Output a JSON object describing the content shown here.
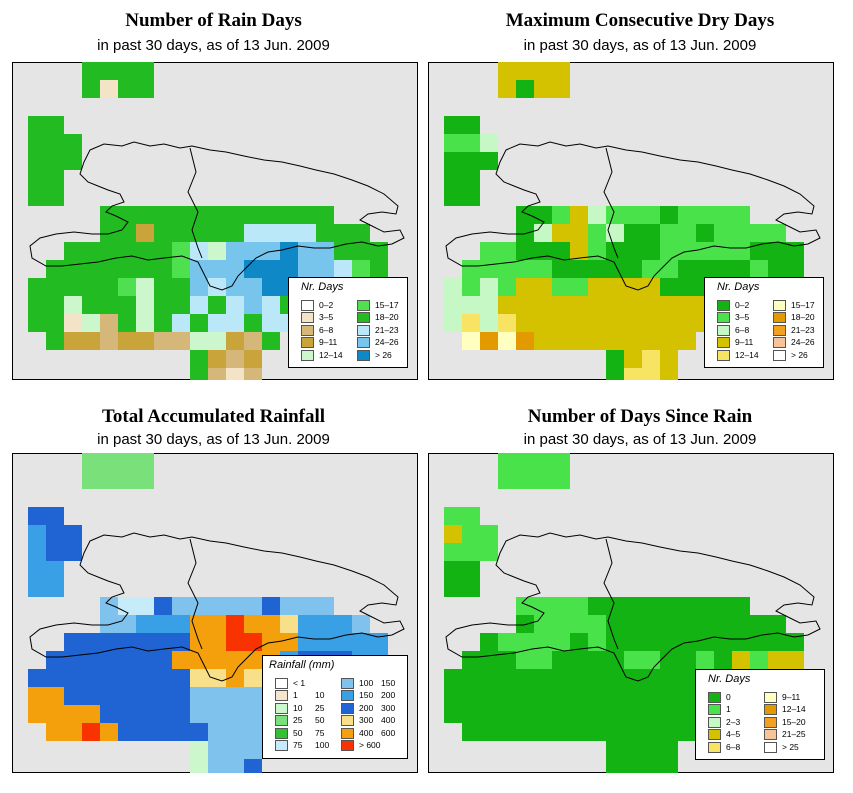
{
  "panels": [
    {
      "title": "Number of Rain Days",
      "subtitle": "in past 30 days, as of  13 Jun. 2009",
      "legend": {
        "title": "Nr. Days",
        "items": [
          {
            "label": "0–2",
            "color": "#ffffff"
          },
          {
            "label": "3–5",
            "color": "#f3e4c7"
          },
          {
            "label": "6–8",
            "color": "#d6b77a"
          },
          {
            "label": "9–11",
            "color": "#c8a43a"
          },
          {
            "label": "12–14",
            "color": "#ccf6cc"
          },
          {
            "label": "15–17",
            "color": "#4fe04f"
          },
          {
            "label": "18–20",
            "color": "#22bb22"
          },
          {
            "label": "21–23",
            "color": "#bbe8f8"
          },
          {
            "label": "24–26",
            "color": "#77c4ec"
          },
          {
            "label": "> 26",
            "color": "#0f88c8"
          }
        ]
      },
      "map": {
        "default": "d",
        "colors": {
          "a": "#4fe04f",
          "d": "#22bb22",
          "s": "#bbe8f8",
          "m": "#77c4ec",
          "v": "#0f88c8",
          "t": "#f3e4c7",
          "b": "#d6b77a",
          "o": "#c8a43a",
          "c": "#ccf6cc",
          "w": "#ffffff"
        },
        "cells": {
          "2,7": "b",
          "3,3": "a",
          "4,1": "t",
          "5,3": "c",
          "5,6": "t",
          "9,6": "b",
          "10,3": "b",
          "6,9": "o",
          "12,9": "s",
          "13,9": "s",
          "14,9": "s",
          "15,9": "s",
          "8,10": "a",
          "9,10": "s",
          "10,10": "c",
          "11,10": "m",
          "12,10": "m",
          "13,10": "m",
          "14,10": "v",
          "15,10": "m",
          "16,10": "m",
          "8,11": "a",
          "9,11": "m",
          "10,11": "m",
          "11,11": "m",
          "12,11": "v",
          "13,11": "v",
          "14,11": "v",
          "15,11": "m",
          "16,11": "m",
          "17,11": "s",
          "18,11": "a",
          "5,12": "a",
          "6,12": "c",
          "9,12": "m",
          "10,12": "s",
          "11,12": "m",
          "12,12": "m",
          "13,12": "v",
          "14,12": "v",
          "15,12": "m",
          "16,12": "m",
          "17,12": "m",
          "18,12": "m",
          "19,12": "m",
          "2,13": "c",
          "6,13": "c",
          "9,13": "s",
          "11,13": "s",
          "12,13": "m",
          "13,13": "s",
          "15,13": "m",
          "16,13": "m",
          "17,13": "s",
          "18,13": "s",
          "19,13": "m",
          "20,13": "o",
          "2,14": "t",
          "3,14": "c",
          "4,14": "b",
          "6,14": "c",
          "8,14": "s",
          "10,14": "s",
          "11,14": "s",
          "13,14": "s",
          "14,14": "s",
          "15,14": "s",
          "16,14": "t",
          "17,14": "s",
          "18,14": "t",
          "19,14": "t",
          "20,14": "b",
          "2,15": "o",
          "3,15": "o",
          "4,15": "b",
          "5,15": "o",
          "6,15": "o",
          "7,15": "b",
          "8,15": "b",
          "9,15": "c",
          "10,15": "c",
          "11,15": "o",
          "12,15": "b",
          "19,15": "b",
          "20,15": "o",
          "10,16": "o",
          "11,16": "b",
          "12,16": "o",
          "10,17": "b",
          "11,17": "t",
          "12,17": "b"
        }
      },
      "land_cells": [
        "1,1",
        "2,1",
        "1,2",
        "3,4",
        "4,4",
        "5,4",
        "6,4",
        "7,4",
        "8,4",
        "9,4",
        "10,4",
        "11,4",
        "12,4"
      ]
    },
    {
      "title": "Maximum Consecutive Dry Days",
      "subtitle": "in past 30 days, as of  13 Jun. 2009",
      "legend": {
        "title": "Nr. Days",
        "items": [
          {
            "label": "0–2",
            "color": "#12b312"
          },
          {
            "label": "3–5",
            "color": "#4ae24a"
          },
          {
            "label": "6–8",
            "color": "#c6f8c6"
          },
          {
            "label": "9–11",
            "color": "#d4c200"
          },
          {
            "label": "12–14",
            "color": "#f6e462"
          },
          {
            "label": "15–17",
            "color": "#ffffc0"
          },
          {
            "label": "18–20",
            "color": "#e29a00"
          },
          {
            "label": "21–23",
            "color": "#f2a020"
          },
          {
            "label": "24–26",
            "color": "#f7c49a"
          },
          {
            "label": "> 26",
            "color": "#ffffff"
          }
        ]
      },
      "map": {
        "default": "g",
        "colors": {
          "g": "#12b312",
          "l": "#4ae24a",
          "p": "#c6f8c6",
          "y": "#d4c200",
          "k": "#f6e462",
          "q": "#ffffc0",
          "r": "#e29a00",
          "o": "#f2a020"
        },
        "cells": {
          "3,0": "y",
          "4,0": "y",
          "5,0": "y",
          "6,0": "y",
          "3,1": "y",
          "5,1": "y",
          "6,1": "y",
          "0,4": "l",
          "1,4": "l",
          "2,4": "p",
          "3,4": "p",
          "6,6": "y",
          "7,6": "y",
          "8,6": "p",
          "9,6": "l",
          "10,6": "y",
          "5,7": "l",
          "6,7": "y",
          "7,7": "y",
          "8,7": "l",
          "9,7": "l",
          "10,7": "l",
          "11,7": "l",
          "12,7": "l",
          "6,8": "l",
          "7,8": "y",
          "8,8": "p",
          "9,8": "l",
          "10,8": "l",
          "11,8": "l",
          "13,8": "l",
          "14,8": "l",
          "15,8": "l",
          "16,8": "l",
          "18,8": "l",
          "5,9": "p",
          "6,9": "y",
          "7,9": "y",
          "8,9": "l",
          "9,9": "p",
          "12,9": "l",
          "13,9": "l",
          "15,9": "l",
          "16,9": "l",
          "17,9": "l",
          "18,9": "l",
          "19,9": "l",
          "2,10": "l",
          "3,10": "l",
          "7,10": "y",
          "8,10": "l",
          "12,10": "l",
          "13,10": "l",
          "14,10": "l",
          "15,10": "l",
          "16,10": "l",
          "1,11": "l",
          "2,11": "l",
          "3,11": "l",
          "4,11": "l",
          "5,11": "l",
          "11,11": "l",
          "12,11": "l",
          "17,11": "l",
          "0,12": "p",
          "1,12": "l",
          "2,12": "p",
          "3,12": "l",
          "4,12": "y",
          "5,12": "y",
          "6,12": "l",
          "7,12": "l",
          "8,12": "y",
          "9,12": "y",
          "10,12": "y",
          "11,12": "y",
          "16,12": "l",
          "17,12": "l",
          "18,12": "l",
          "19,12": "l",
          "20,12": "l",
          "0,13": "p",
          "1,13": "p",
          "2,13": "p",
          "3,13": "y",
          "4,13": "y",
          "5,13": "y",
          "6,13": "y",
          "7,13": "y",
          "8,13": "y",
          "9,13": "y",
          "10,13": "y",
          "11,13": "y",
          "12,13": "y",
          "13,13": "y",
          "14,13": "y",
          "15,13": "y",
          "16,13": "y",
          "17,13": "y",
          "18,13": "o",
          "19,13": "y",
          "0,14": "p",
          "1,14": "k",
          "2,14": "p",
          "3,14": "k",
          "4,14": "y",
          "5,14": "y",
          "6,14": "y",
          "7,14": "y",
          "8,14": "y",
          "9,14": "y",
          "10,14": "y",
          "11,14": "y",
          "12,14": "y",
          "13,14": "y",
          "14,14": "y",
          "15,14": "o",
          "16,14": "y",
          "17,14": "y",
          "18,14": "y",
          "19,14": "y",
          "20,14": "y",
          "1,15": "q",
          "2,15": "r",
          "3,15": "q",
          "4,15": "r",
          "5,15": "y",
          "6,15": "y",
          "7,15": "y",
          "8,15": "y",
          "9,15": "y",
          "10,15": "y",
          "11,15": "y",
          "12,15": "y",
          "13,15": "y",
          "10,16": "y",
          "11,16": "k",
          "12,16": "y",
          "10,17": "k",
          "11,17": "k",
          "12,17": "y"
        }
      }
    },
    {
      "title": "Total Accumulated Rainfall",
      "subtitle": "in past 30 days, as of  13 Jun. 2009",
      "legend": {
        "title": "Rainfall (mm)",
        "items": [
          {
            "lo": "< 1",
            "hi": "",
            "color": "#ffffff"
          },
          {
            "lo": "1",
            "hi": "10",
            "color": "#f4e6cc"
          },
          {
            "lo": "10",
            "hi": "25",
            "color": "#ccf6cc"
          },
          {
            "lo": "25",
            "hi": "50",
            "color": "#7ae07a"
          },
          {
            "lo": "50",
            "hi": "75",
            "color": "#33c133"
          },
          {
            "lo": "75",
            "hi": "100",
            "color": "#c6ecfa"
          },
          {
            "lo": "100",
            "hi": "150",
            "color": "#80c2ee"
          },
          {
            "lo": "150",
            "hi": "200",
            "color": "#3aa0e6"
          },
          {
            "lo": "200",
            "hi": "300",
            "color": "#1f64d2"
          },
          {
            "lo": "300",
            "hi": "400",
            "color": "#f8e08a"
          },
          {
            "lo": "400",
            "hi": "600",
            "color": "#f4a00c"
          },
          {
            "lo": "> 600",
            "hi": "",
            "color": "#f83300"
          }
        ]
      },
      "map": {
        "default": "b",
        "colors": {
          "b": "#1f64d2",
          "m": "#3aa0e6",
          "l": "#80c2ee",
          "s": "#c6ecfa",
          "y": "#f8e08a",
          "o": "#f4a00c",
          "r": "#f83300",
          "g": "#7ae07a",
          "c": "#ccf6cc"
        },
        "cells": {
          "3,0": "g",
          "4,0": "g",
          "5,0": "g",
          "6,0": "g",
          "3,1": "g",
          "4,1": "g",
          "5,1": "g",
          "6,1": "g",
          "0,4": "m",
          "0,5": "m",
          "0,6": "m",
          "1,6": "m",
          "0,7": "m",
          "1,7": "m",
          "4,8": "l",
          "5,8": "s",
          "6,8": "s",
          "8,8": "l",
          "9,8": "l",
          "10,8": "l",
          "11,8": "l",
          "12,8": "l",
          "14,8": "l",
          "15,8": "l",
          "16,8": "l",
          "4,9": "l",
          "5,9": "l",
          "6,9": "m",
          "7,9": "m",
          "8,9": "m",
          "9,9": "o",
          "10,9": "o",
          "11,9": "r",
          "12,9": "o",
          "13,9": "o",
          "14,9": "y",
          "15,9": "m",
          "16,9": "m",
          "17,9": "m",
          "18,9": "l",
          "9,10": "o",
          "10,10": "o",
          "11,10": "r",
          "12,10": "r",
          "13,10": "o",
          "14,10": "o",
          "15,10": "m",
          "16,10": "m",
          "17,10": "m",
          "18,10": "m",
          "19,10": "m",
          "8,11": "o",
          "9,11": "o",
          "10,11": "o",
          "11,11": "o",
          "12,11": "o",
          "13,11": "o",
          "14,11": "m",
          "15,11": "b",
          "16,11": "b",
          "17,11": "b",
          "18,11": "m",
          "19,11": "m",
          "9,12": "y",
          "10,12": "y",
          "11,12": "o",
          "12,12": "y",
          "13,12": "y",
          "14,12": "m",
          "15,12": "b",
          "16,12": "b",
          "17,12": "y",
          "18,12": "y",
          "19,12": "m",
          "0,13": "o",
          "1,13": "o",
          "2,13": "b",
          "3,13": "b",
          "4,13": "b",
          "5,13": "b",
          "6,13": "b",
          "7,13": "b",
          "8,13": "b",
          "9,13": "l",
          "10,13": "l",
          "11,13": "l",
          "12,13": "l",
          "13,13": "l",
          "14,13": "l",
          "15,13": "b",
          "16,13": "b",
          "17,13": "b",
          "18,13": "b",
          "19,13": "b",
          "20,13": "b",
          "0,14": "o",
          "1,14": "o",
          "2,14": "o",
          "3,14": "o",
          "4,14": "b",
          "5,14": "b",
          "6,14": "b",
          "7,14": "b",
          "8,14": "b",
          "9,14": "l",
          "10,14": "l",
          "11,14": "l",
          "12,14": "l",
          "13,14": "l",
          "14,14": "l",
          "15,14": "b",
          "16,14": "b",
          "17,14": "b",
          "18,14": "b",
          "19,14": "b",
          "20,14": "b",
          "1,15": "o",
          "2,15": "o",
          "3,15": "r",
          "4,15": "o",
          "5,15": "b",
          "6,15": "b",
          "7,15": "b",
          "8,15": "b",
          "9,15": "b",
          "10,15": "l",
          "11,15": "l",
          "12,15": "l",
          "9,16": "c",
          "10,16": "l",
          "11,16": "l",
          "12,16": "l",
          "9,17": "c",
          "10,17": "l",
          "11,17": "l"
        }
      }
    },
    {
      "title": "Number of Days Since Rain",
      "subtitle": "in past 30 days, as of  13 Jun. 2009",
      "legend": {
        "title": "Nr. Days",
        "items": [
          {
            "label": "0",
            "color": "#12b312"
          },
          {
            "label": "1",
            "color": "#4ae24a"
          },
          {
            "label": "2–3",
            "color": "#c6f8c6"
          },
          {
            "label": "4–5",
            "color": "#d4c200"
          },
          {
            "label": "6–8",
            "color": "#f6e462"
          },
          {
            "label": "9–11",
            "color": "#ffffc0"
          },
          {
            "label": "12–14",
            "color": "#e29a00"
          },
          {
            "label": "15–20",
            "color": "#f2a020"
          },
          {
            "label": "21–25",
            "color": "#f7c49a"
          },
          {
            "label": "> 25",
            "color": "#ffffff"
          }
        ]
      },
      "map": {
        "default": "g",
        "colors": {
          "g": "#12b312",
          "l": "#4ae24a",
          "p": "#c6f8c6",
          "y": "#d4c200",
          "k": "#f6e462"
        },
        "cells": {
          "3,0": "l",
          "4,0": "l",
          "5,0": "l",
          "6,0": "l",
          "3,1": "l",
          "4,1": "l",
          "5,1": "l",
          "6,1": "l",
          "0,3": "l",
          "1,3": "l",
          "0,4": "y",
          "1,4": "l",
          "2,4": "l",
          "0,5": "l",
          "1,5": "l",
          "2,5": "l",
          "4,8": "l",
          "5,8": "l",
          "6,8": "l",
          "7,8": "l",
          "5,9": "l",
          "6,9": "l",
          "7,9": "l",
          "8,9": "l",
          "3,10": "l",
          "4,10": "l",
          "5,10": "l",
          "6,10": "l",
          "8,10": "l",
          "4,11": "l",
          "5,11": "l",
          "10,11": "l",
          "11,11": "l",
          "14,11": "l",
          "16,11": "y",
          "17,11": "l",
          "18,11": "y",
          "19,11": "y",
          "18,12": "y",
          "19,12": "y",
          "18,13": "y",
          "19,13": "y",
          "20,13": "y",
          "16,13": "k",
          "17,13": "k",
          "16,14": "y",
          "17,14": "y",
          "18,14": "y",
          "19,14": "l"
        }
      }
    }
  ]
}
